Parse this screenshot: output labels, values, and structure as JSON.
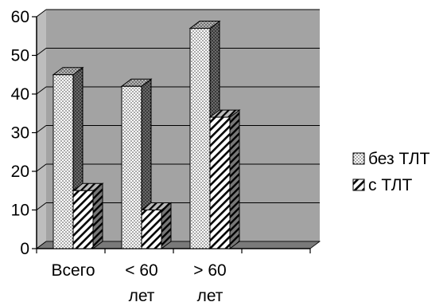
{
  "chart_data": {
    "type": "bar",
    "categories": [
      [
        "Всего"
      ],
      [
        "< 60",
        "лет"
      ],
      [
        "> 60",
        "лет"
      ],
      [
        ""
      ]
    ],
    "series": [
      {
        "name": "без ТЛТ",
        "values": [
          45,
          42,
          57,
          null
        ],
        "pattern": "dots"
      },
      {
        "name": "с ТЛТ",
        "values": [
          15,
          10,
          34,
          null
        ],
        "pattern": "hatch"
      }
    ],
    "ylim": [
      0,
      60
    ],
    "yticks": [
      0,
      10,
      20,
      30,
      40,
      50,
      60
    ],
    "grid": true,
    "legend_position": "right",
    "three_d": true
  },
  "colors": {
    "wall": "#a3a3a3",
    "floor": "#7a7a7a",
    "gridline": "#000000",
    "bar_face": "#ffffff",
    "bar_side": "#555555",
    "bar_top": "#9a9a9a",
    "stroke": "#000000"
  }
}
